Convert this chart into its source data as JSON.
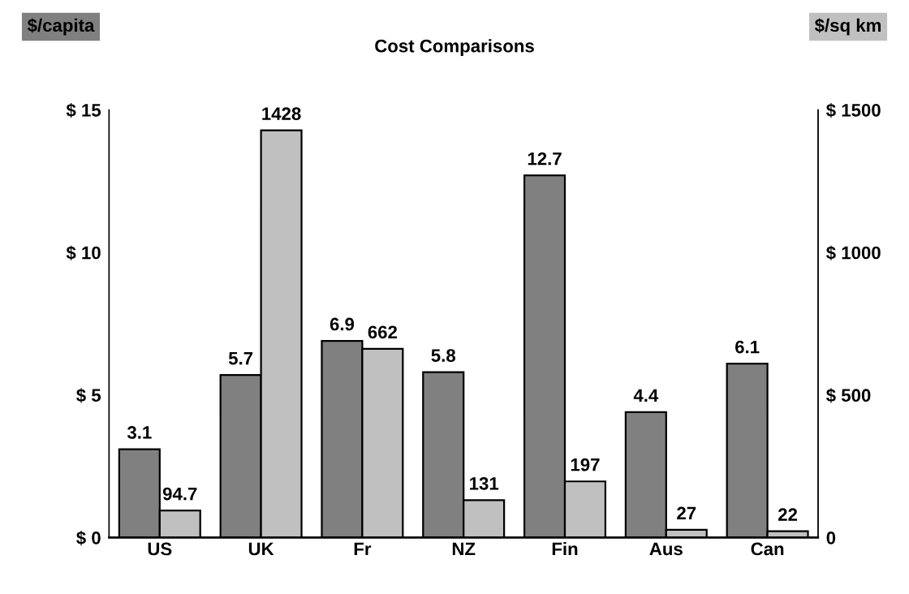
{
  "chart_data": {
    "type": "bar",
    "title": "Cost Comparisons",
    "ylabel": "$/capita",
    "y2label": "$/sq km",
    "categories": [
      "US",
      "UK",
      "Fr",
      "NZ",
      "Fin",
      "Aus",
      "Can"
    ],
    "series": [
      {
        "color": "#808080",
        "values": [
          3.1,
          5.7,
          6.9,
          5.8,
          12.7,
          4.4,
          6.1
        ]
      },
      {
        "color": "#c0c0c0",
        "axis": "y2",
        "values": [
          94.7,
          1428,
          662,
          131,
          197,
          27,
          22
        ]
      }
    ],
    "ylim": [
      0,
      15
    ],
    "yticks": [
      {
        "value": 0,
        "label": "$ 0"
      },
      {
        "value": 5,
        "label": "$ 5"
      },
      {
        "value": 10,
        "label": "$ 10"
      },
      {
        "value": 15,
        "label": "$ 15"
      }
    ],
    "y2lim": [
      0,
      1500
    ],
    "y2ticks": [
      0,
      {
        "value": 500,
        "label": "$ 500"
      },
      {
        "value": 1000,
        "label": "$ 1000"
      },
      {
        "value": 1500,
        "label": "$ 1500"
      }
    ],
    "data_labels": true,
    "grid": false,
    "legend": false
  }
}
